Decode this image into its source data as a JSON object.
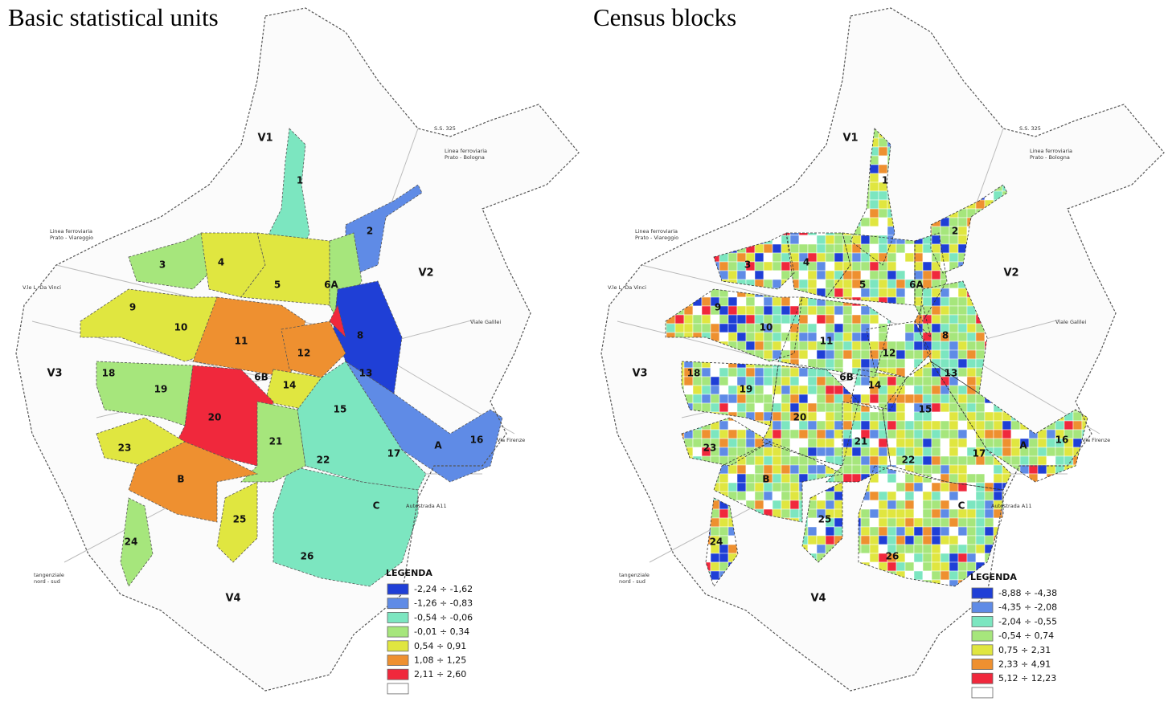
{
  "maps": [
    {
      "title": "Basic statistical units",
      "areas": [
        "V1",
        "V2",
        "V3",
        "V4"
      ],
      "zones": [
        "1",
        "2",
        "3",
        "4",
        "5",
        "6A",
        "8",
        "9",
        "10",
        "11",
        "12",
        "13",
        "14",
        "15",
        "16",
        "17",
        "18",
        "19",
        "20",
        "21",
        "22",
        "23",
        "24",
        "25",
        "26",
        "6B",
        "A",
        "B",
        "C"
      ],
      "places": [
        [
          "S.S. 325"
        ],
        [
          "Linea ferroviaria",
          "Prato - Bologna"
        ],
        [
          "Linea ferroviaria",
          "Prato - Viareggio"
        ],
        [
          "V.le L. Da Vinci"
        ],
        [
          "Viale Galilei"
        ],
        [
          "Via Firenze"
        ],
        [
          "Autostrada A11"
        ],
        [
          "tangenziale",
          "nord - sud"
        ]
      ],
      "legend": {
        "title": "LEGENDA",
        "items": [
          {
            "label": "-2,24 ÷ -1,62",
            "color": "#1f3fd6"
          },
          {
            "label": "-1,26 ÷ -0,83",
            "color": "#5f8be6"
          },
          {
            "label": "-0,54 ÷ -0,06",
            "color": "#7ce6c0"
          },
          {
            "label": "-0,01 ÷ 0,34",
            "color": "#a6e67c"
          },
          {
            "label": "0,54 ÷ 0,91",
            "color": "#e0e640"
          },
          {
            "label": "1,08 ÷ 1,25",
            "color": "#ee9030"
          },
          {
            "label": "2,11 ÷ 2,60",
            "color": "#f0283c"
          },
          {
            "color": "#ffffff"
          }
        ]
      }
    },
    {
      "title": "Census blocks",
      "areas": [
        "V1",
        "V2",
        "V3",
        "V4"
      ],
      "zones": [
        "1",
        "2",
        "3",
        "4",
        "5",
        "6A",
        "8",
        "9",
        "10",
        "11",
        "12",
        "13",
        "14",
        "15",
        "16",
        "17",
        "18",
        "19",
        "20",
        "21",
        "22",
        "23",
        "24",
        "25",
        "26",
        "6B",
        "A",
        "B",
        "C"
      ],
      "places": [
        [
          "S.S. 325"
        ],
        [
          "Linea ferroviaria",
          "Prato - Bologna"
        ],
        [
          "Linea ferroviaria",
          "Prato - Viareggio"
        ],
        [
          "V.le L. Da Vinci"
        ],
        [
          "Viale Galilei"
        ],
        [
          "Via Firenze"
        ],
        [
          "Autostrada A11"
        ],
        [
          "tangenziale",
          "nord - sud"
        ]
      ],
      "legend": {
        "title": "LEGENDA",
        "items": [
          {
            "label": "-8,88 ÷ -4,38",
            "color": "#1f3fd6"
          },
          {
            "label": "-4,35 ÷ -2,08",
            "color": "#5f8be6"
          },
          {
            "label": "-2,04 ÷ -0,55",
            "color": "#7ce6c0"
          },
          {
            "label": "-0,54 ÷ 0,74",
            "color": "#a6e67c"
          },
          {
            "label": "0,75 ÷ 2,31",
            "color": "#e0e640"
          },
          {
            "label": "2,33 ÷ 4,91",
            "color": "#ee9030"
          },
          {
            "label": "5,12 ÷ 12,23",
            "color": "#f0283c"
          },
          {
            "color": "#ffffff"
          }
        ]
      }
    }
  ]
}
